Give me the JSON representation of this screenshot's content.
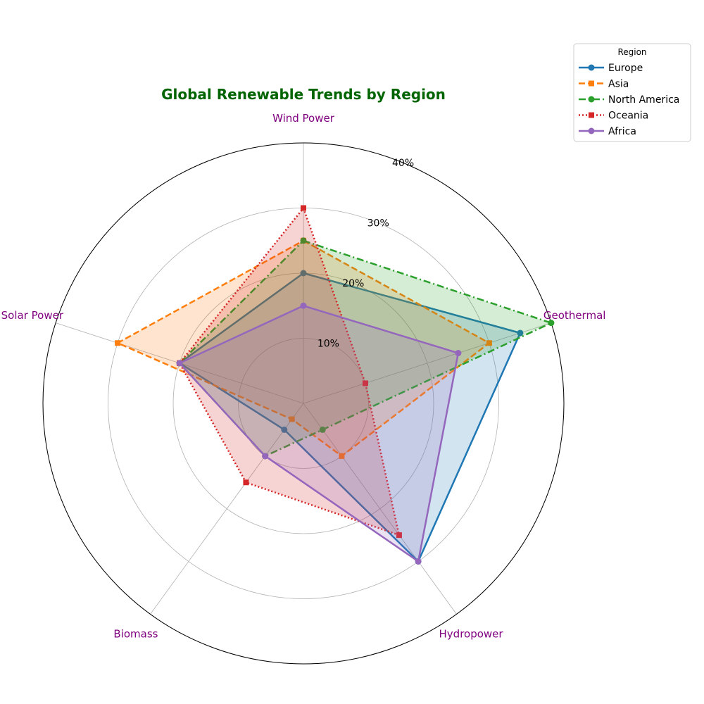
{
  "chart_data": {
    "type": "radar",
    "title": "Global Renewable Trends by Region",
    "categories": [
      "Wind Power",
      "Geothermal",
      "Hydropower",
      "Biomass",
      "Solar Power"
    ],
    "r_ticks": [
      "10%",
      "20%",
      "30%",
      "40%"
    ],
    "r_tick_values": [
      10,
      20,
      30,
      40
    ],
    "rlim": [
      0,
      40
    ],
    "grid": true,
    "legend": {
      "title": "Region",
      "placement": "top-right, outside plot"
    },
    "series": [
      {
        "name": "Europe",
        "values": [
          20,
          35,
          30,
          5,
          20
        ],
        "color": "#1f77b4",
        "linestyle": "solid",
        "marker": "circle"
      },
      {
        "name": "Asia",
        "values": [
          25,
          30,
          10,
          3,
          30
        ],
        "color": "#ff7f0e",
        "linestyle": "dashed",
        "marker": "square"
      },
      {
        "name": "North America",
        "values": [
          25,
          40,
          5,
          10,
          20
        ],
        "color": "#2ca02c",
        "linestyle": "dashdot",
        "marker": "circle"
      },
      {
        "name": "Oceania",
        "values": [
          30,
          10,
          25,
          15,
          20
        ],
        "color": "#d62728",
        "linestyle": "dotted",
        "marker": "square"
      },
      {
        "name": "Africa",
        "values": [
          15,
          25,
          30,
          10,
          20
        ],
        "color": "#9467bd",
        "linestyle": "solid",
        "marker": "circle"
      }
    ]
  }
}
